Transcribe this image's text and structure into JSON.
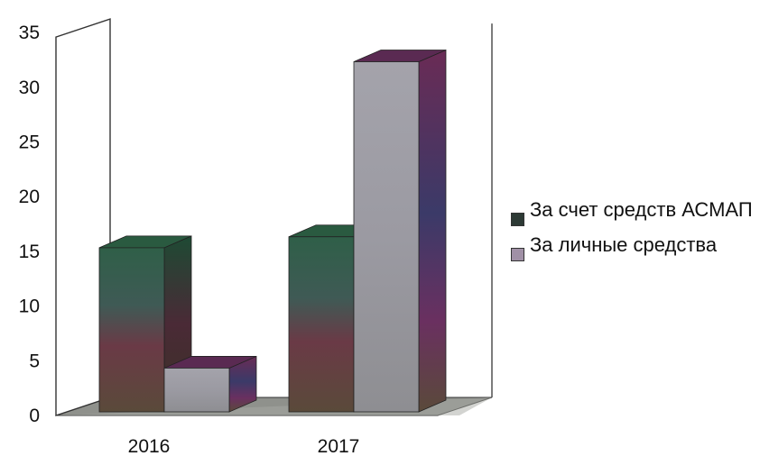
{
  "chart_data": {
    "type": "bar",
    "categories": [
      "2016",
      "2017"
    ],
    "series": [
      {
        "name": "За счет средств АСМАП",
        "values": [
          15,
          16
        ]
      },
      {
        "name": "За личные средства",
        "values": [
          4,
          32
        ]
      }
    ],
    "ylim": [
      0,
      35
    ],
    "yticks": [
      "0",
      "5",
      "10",
      "15",
      "20",
      "25",
      "30",
      "35"
    ],
    "grid": false,
    "legend_position": "right",
    "colors": [
      "#3b5a4a",
      "#9a9aa0"
    ]
  }
}
